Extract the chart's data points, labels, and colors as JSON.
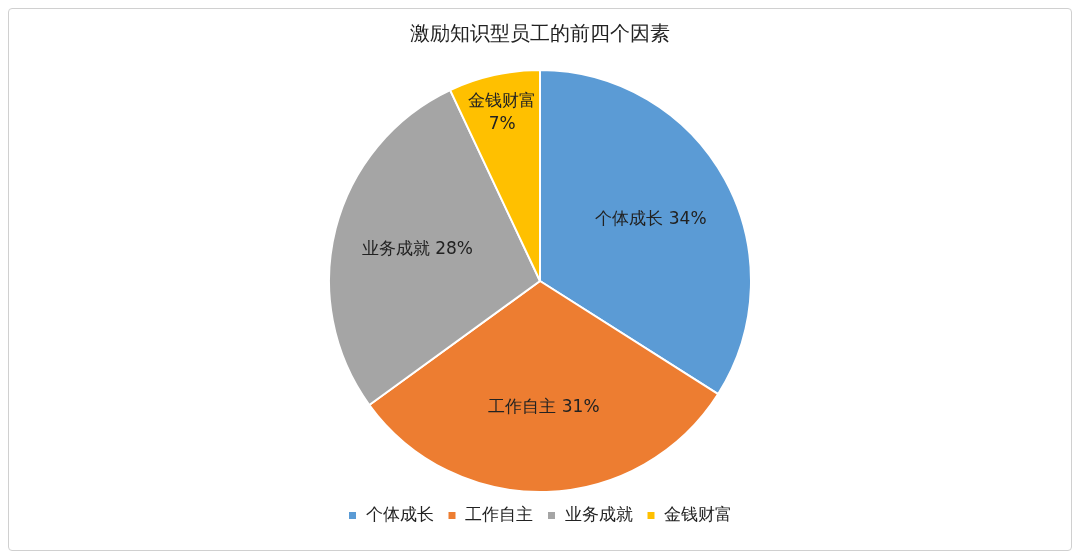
{
  "chart_data": {
    "type": "pie",
    "title": "激励知识型员工的前四个因素",
    "categories": [
      "个体成长",
      "工作自主",
      "业务成就",
      "金钱财富"
    ],
    "values": [
      34,
      31,
      28,
      7
    ],
    "colors": [
      "#5b9bd5",
      "#ed7d31",
      "#a5a5a5",
      "#ffc000"
    ],
    "value_labels": [
      "34%",
      "31%",
      "28%",
      "7%"
    ],
    "legend": "bottom"
  }
}
